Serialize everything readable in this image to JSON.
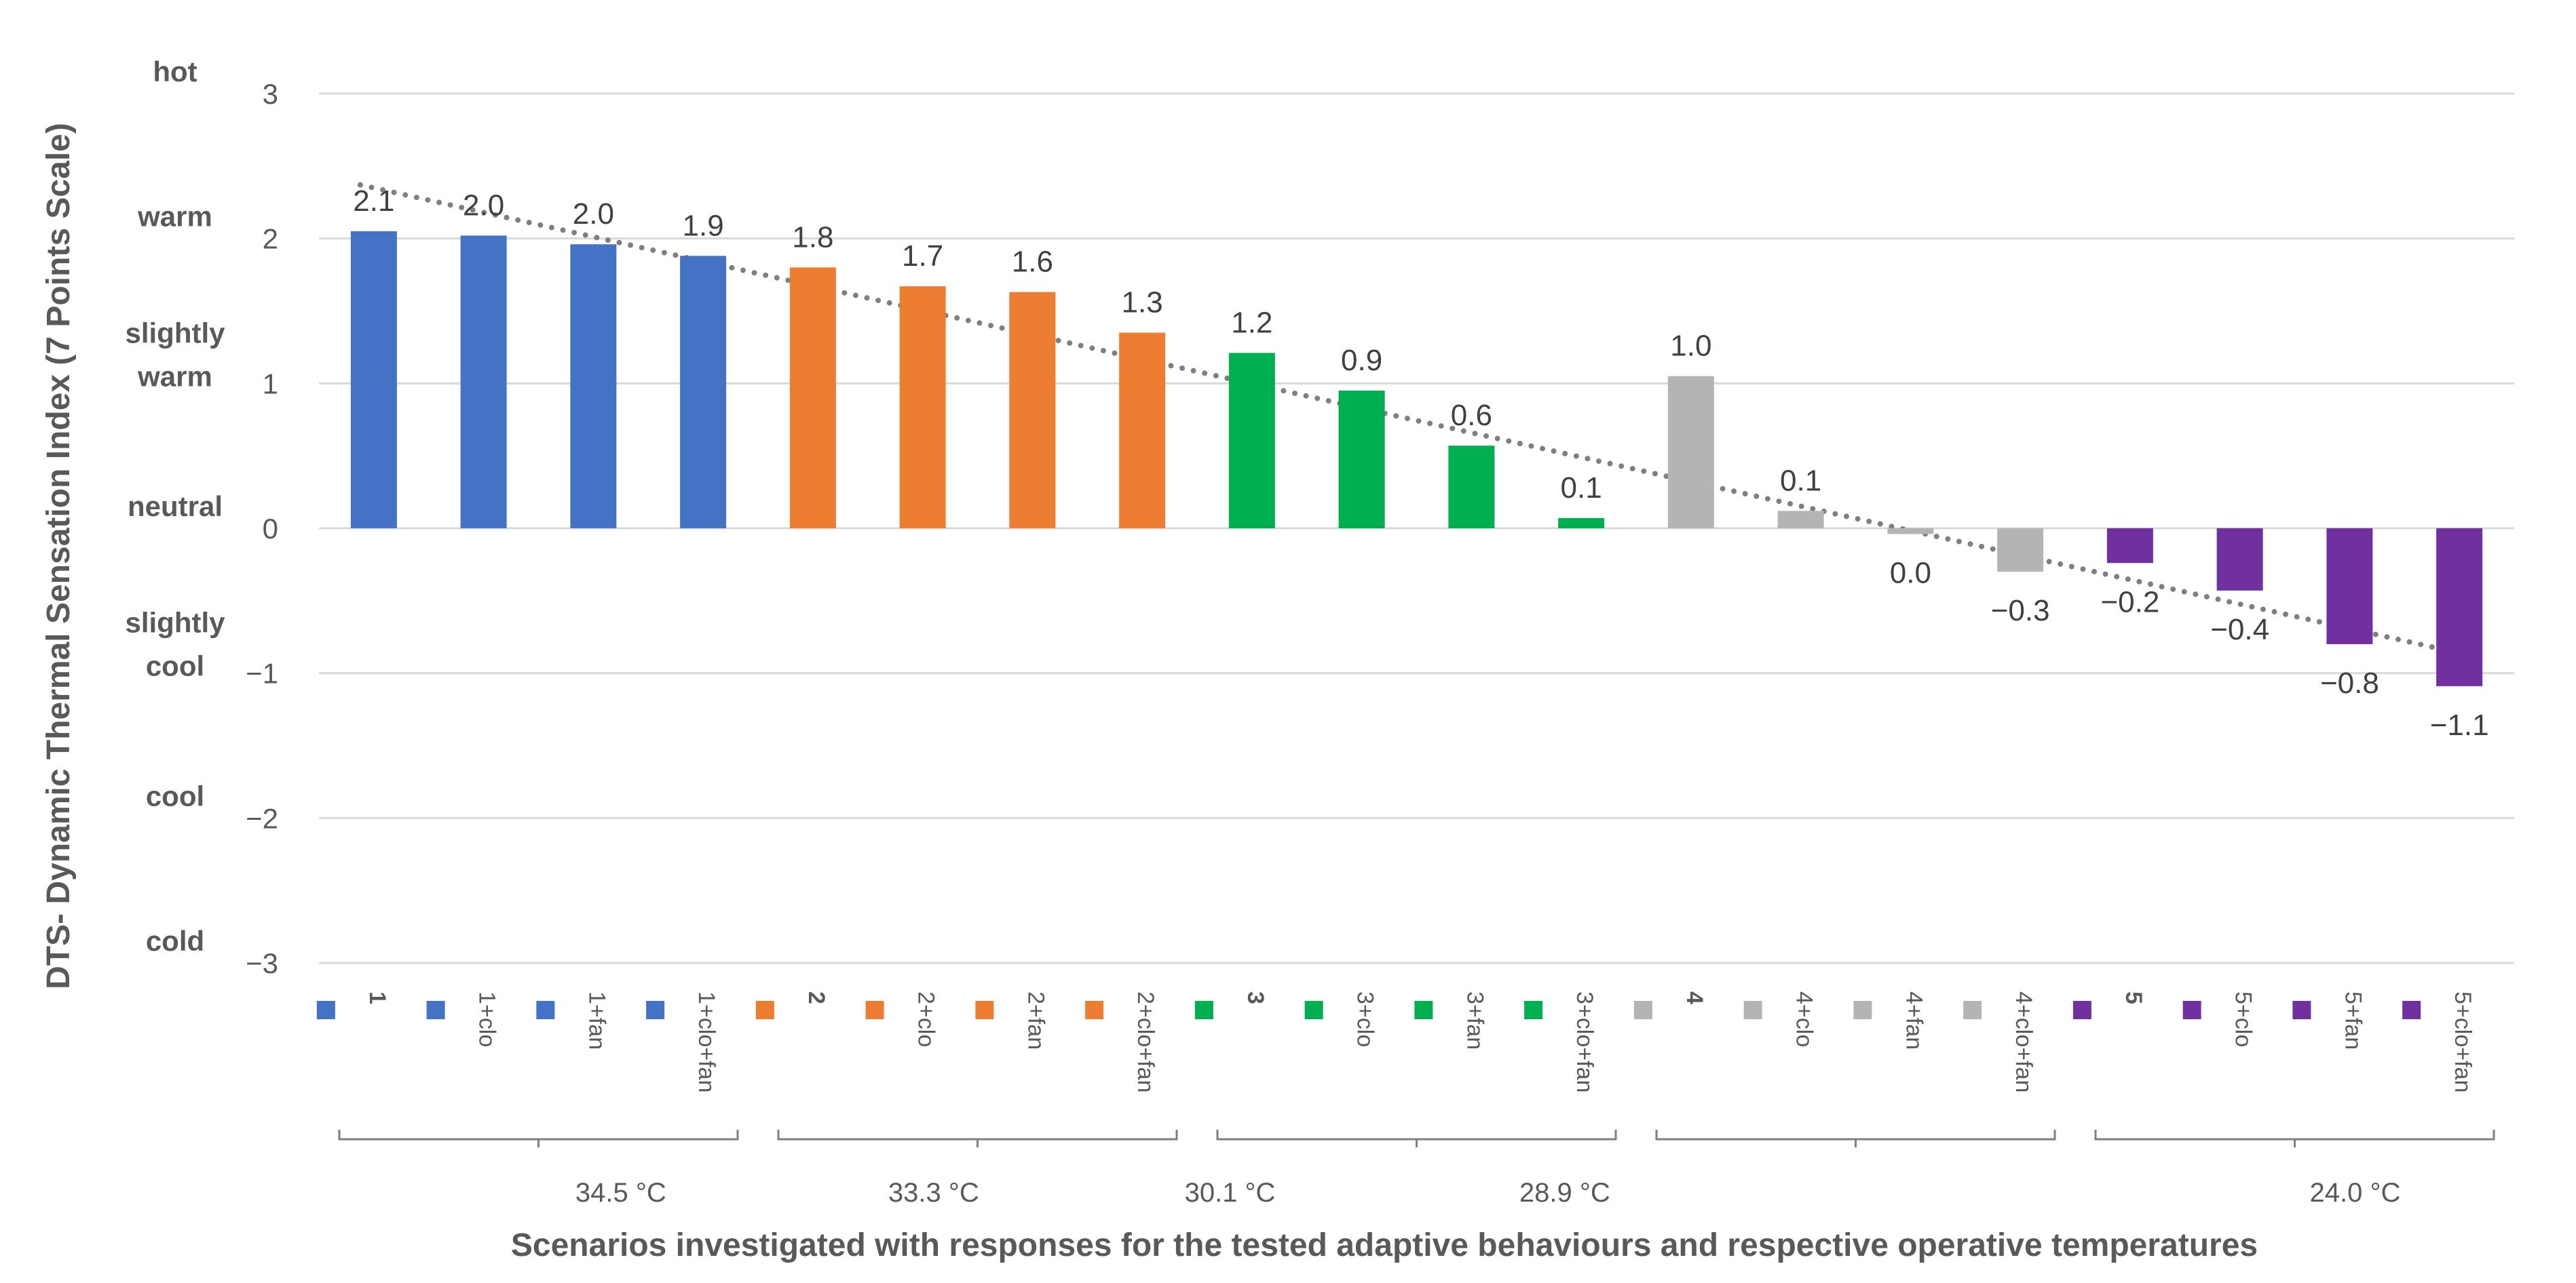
{
  "chart_data": {
    "type": "bar",
    "title": "",
    "ylabel": "DTS- Dynamic Thermal Sensation Index (7 Points Scale)",
    "xlabel": "Scenarios investigated with responses for the tested adaptive behaviours and respective operative temperatures",
    "ylim": [
      -3,
      3
    ],
    "yticks": [
      "3",
      "2",
      "1",
      "0",
      "−1",
      "−2",
      "−3"
    ],
    "sensation_labels": [
      {
        "value": 3,
        "lines": [
          "hot"
        ]
      },
      {
        "value": 2,
        "lines": [
          "warm"
        ]
      },
      {
        "value": 1,
        "lines": [
          "slightly",
          "warm"
        ]
      },
      {
        "value": 0,
        "lines": [
          "neutral"
        ]
      },
      {
        "value": -1,
        "lines": [
          "slightly",
          "cool"
        ]
      },
      {
        "value": -2,
        "lines": [
          "cool"
        ]
      },
      {
        "value": -3,
        "lines": [
          "cold"
        ]
      }
    ],
    "categories": [
      "1",
      "1+clo",
      "1+fan",
      "1+clo+fan",
      "2",
      "2+clo",
      "2+fan",
      "2+clo+fan",
      "3",
      "3+clo",
      "3+fan",
      "3+clo+fan",
      "4",
      "4+clo",
      "4+fan",
      "4+clo+fan",
      "5",
      "5+clo",
      "5+fan",
      "5+clo+fan"
    ],
    "bold_categories": [
      "1",
      "2",
      "3",
      "4",
      "5"
    ],
    "values": [
      2.05,
      2.02,
      1.96,
      1.88,
      1.8,
      1.67,
      1.63,
      1.35,
      1.21,
      0.95,
      0.57,
      0.07,
      1.05,
      0.12,
      -0.04,
      -0.3,
      -0.24,
      -0.43,
      -0.8,
      -1.09
    ],
    "data_labels": [
      "2.1",
      "2.0",
      "2.0",
      "1.9",
      "1.8",
      "1.7",
      "1.6",
      "1.3",
      "1.2",
      "0.9",
      "0.6",
      "0.1",
      "1.0",
      "0.1",
      "0.0",
      "−0.3",
      "−0.2",
      "−0.4",
      "−0.8",
      "−1.1"
    ],
    "series_colors": [
      "#4472c4",
      "#ed7d31",
      "#00b050",
      "#b4b4b4",
      "#7030a0"
    ],
    "group_size": 4,
    "trendline": {
      "type": "linear",
      "style": "dotted",
      "color": "#7f7f7f",
      "start": 2.37,
      "end": -0.83
    },
    "temperature_labels": [
      {
        "label": "34.5 °C",
        "at_category": 2.25
      },
      {
        "label": "33.3 °C",
        "at_category": 5.1
      },
      {
        "label": "30.1 °C",
        "at_category": 7.8
      },
      {
        "label": "28.9 °C",
        "at_category": 10.85
      },
      {
        "label": "24.0 °C",
        "at_category": 18.05
      }
    ]
  }
}
